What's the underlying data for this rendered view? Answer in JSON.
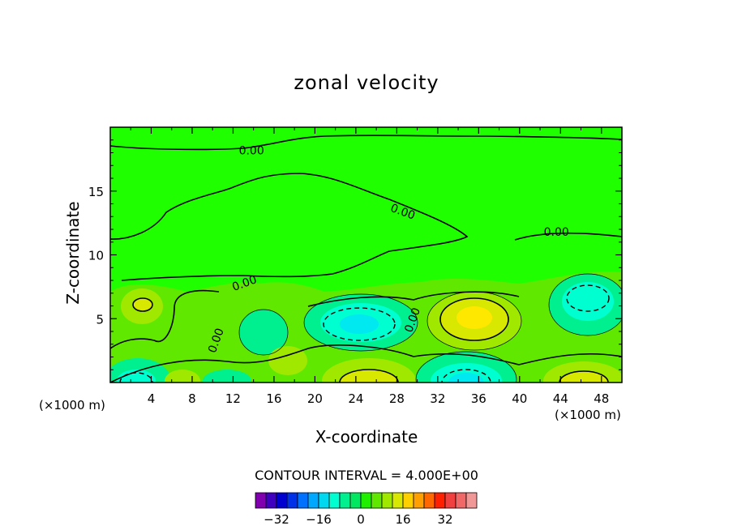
{
  "chart_data": {
    "type": "heatmap",
    "title": "zonal velocity",
    "xlabel": "X-coordinate",
    "ylabel": "Z-coordinate",
    "x_unit_label": "(×1000 m)",
    "xlim": [
      0,
      50
    ],
    "ylim": [
      0,
      20
    ],
    "x_ticks": [
      4,
      8,
      12,
      16,
      20,
      24,
      28,
      32,
      36,
      40,
      44,
      48
    ],
    "y_ticks": [
      5,
      10,
      15
    ],
    "contour_interval_text": "CONTOUR INTERVAL = 4.000E+00",
    "contour_labels": [
      {
        "text": "0.00",
        "x": 13.8,
        "y": 18.2
      },
      {
        "text": "0.00",
        "x": 28.6,
        "y": 13.4
      },
      {
        "text": "0.00",
        "x": 43.6,
        "y": 11.8
      },
      {
        "text": "0.00",
        "x": 13.1,
        "y": 7.8
      },
      {
        "text": "0.00",
        "x": 29.5,
        "y": 4.9
      },
      {
        "text": "0.00",
        "x": 10.3,
        "y": 3.3
      }
    ],
    "features": [
      {
        "kind": "max",
        "x": 35,
        "y": 5.0,
        "value": 12
      },
      {
        "kind": "min",
        "x": 24.5,
        "y": 4.6,
        "value": -10
      },
      {
        "kind": "min",
        "x": 46,
        "y": 6.6,
        "value": -8
      },
      {
        "kind": "max",
        "x": 3.2,
        "y": 6.0,
        "value": 8
      },
      {
        "kind": "max",
        "x": 25,
        "y": 0.6,
        "value": 12
      },
      {
        "kind": "max",
        "x": 46.5,
        "y": 0.5,
        "value": 12
      },
      {
        "kind": "min",
        "x": 35,
        "y": 0.8,
        "value": -12
      },
      {
        "kind": "min",
        "x": 3,
        "y": 0.6,
        "value": -10
      }
    ],
    "colorbar": {
      "ticks": [
        -32,
        -16,
        0,
        16,
        32
      ],
      "colors": [
        "#8000b0",
        "#4000c0",
        "#0000d0",
        "#0030e8",
        "#0070ff",
        "#00a8ff",
        "#00d8f0",
        "#00ffd0",
        "#00f090",
        "#00e860",
        "#20f000",
        "#60e800",
        "#a0e800",
        "#d8e800",
        "#ffd000",
        "#ffa000",
        "#ff6800",
        "#ff2000",
        "#f04040",
        "#f06868",
        "#f09898"
      ]
    }
  }
}
